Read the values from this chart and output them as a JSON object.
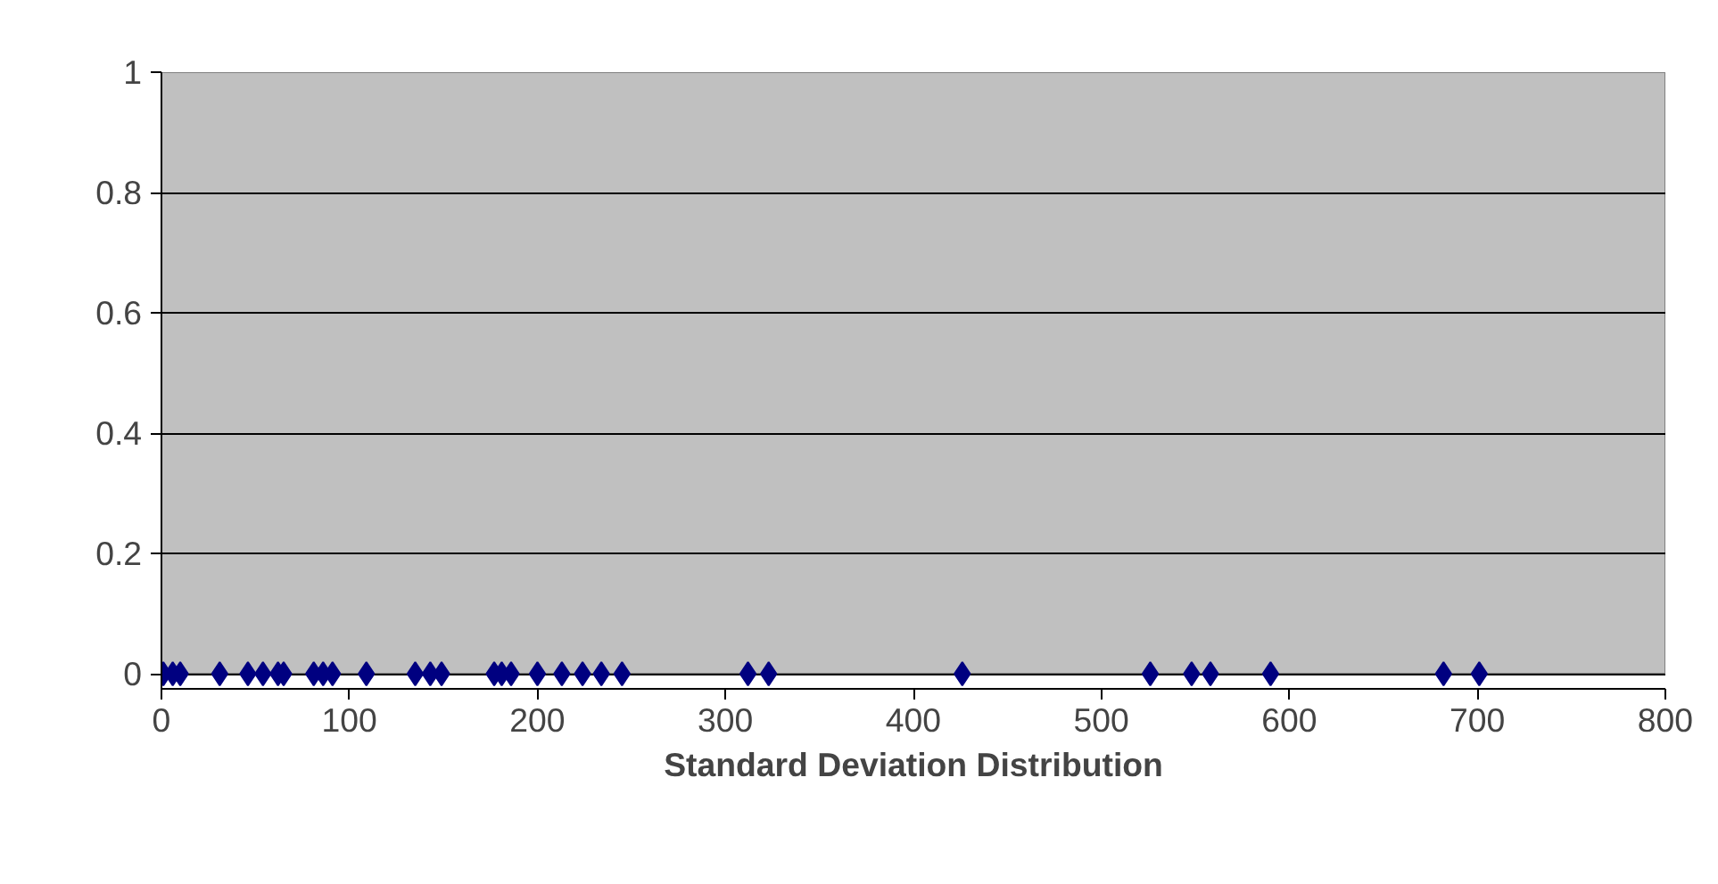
{
  "chart_data": {
    "type": "scatter",
    "xlabel": "Standard Deviation Distribution",
    "xlim": [
      0,
      800
    ],
    "ylim": [
      0,
      1
    ],
    "xticks": [
      0,
      100,
      200,
      300,
      400,
      500,
      600,
      700,
      800
    ],
    "yticks": [
      0,
      0.2,
      0.4,
      0.6,
      0.8,
      1
    ],
    "grid": "y",
    "marker": "diamond",
    "x": [
      1,
      6,
      10,
      31,
      46,
      54,
      62,
      65,
      81,
      86,
      91,
      109,
      135,
      143,
      149,
      177,
      181,
      186,
      200,
      213,
      224,
      234,
      245,
      312,
      323,
      426,
      526,
      548,
      558,
      590,
      682,
      701
    ],
    "series": [
      {
        "color": "#000080",
        "values": [
          0,
          0,
          0,
          0,
          0,
          0,
          0,
          0,
          0,
          0,
          0,
          0,
          0,
          0,
          0,
          0,
          0,
          0,
          0,
          0,
          0,
          0,
          0,
          0,
          0,
          0,
          0,
          0,
          0,
          0,
          0,
          0
        ]
      }
    ]
  }
}
